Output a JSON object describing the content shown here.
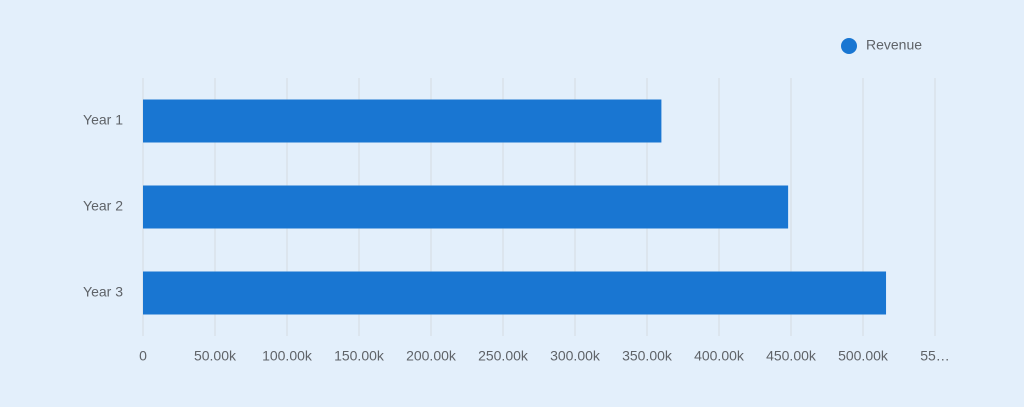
{
  "chart_data": {
    "type": "hbar",
    "categories": [
      "Year 1",
      "Year 2",
      "Year 3"
    ],
    "series": [
      {
        "name": "Revenue",
        "color": "#1976d2",
        "values": [
          360000,
          448000,
          516000
        ]
      }
    ],
    "xlim": [
      0,
      550000
    ],
    "xticks": [
      0,
      {
        "value": 50000,
        "label": "50.00k"
      },
      {
        "value": 100000,
        "label": "100.00k"
      },
      {
        "value": 150000,
        "label": "150.00k"
      },
      {
        "value": 200000,
        "label": "200.00k"
      },
      {
        "value": 250000,
        "label": "250.00k"
      },
      {
        "value": 300000,
        "label": "300.00k"
      },
      {
        "value": 350000,
        "label": "350.00k"
      },
      {
        "value": 400000,
        "label": "400.00k"
      },
      {
        "value": 450000,
        "label": "450.00k"
      },
      {
        "value": 500000,
        "label": "500.00k"
      },
      {
        "value": 550000,
        "label": "55…"
      }
    ],
    "grid": true,
    "legend": "top-right"
  }
}
